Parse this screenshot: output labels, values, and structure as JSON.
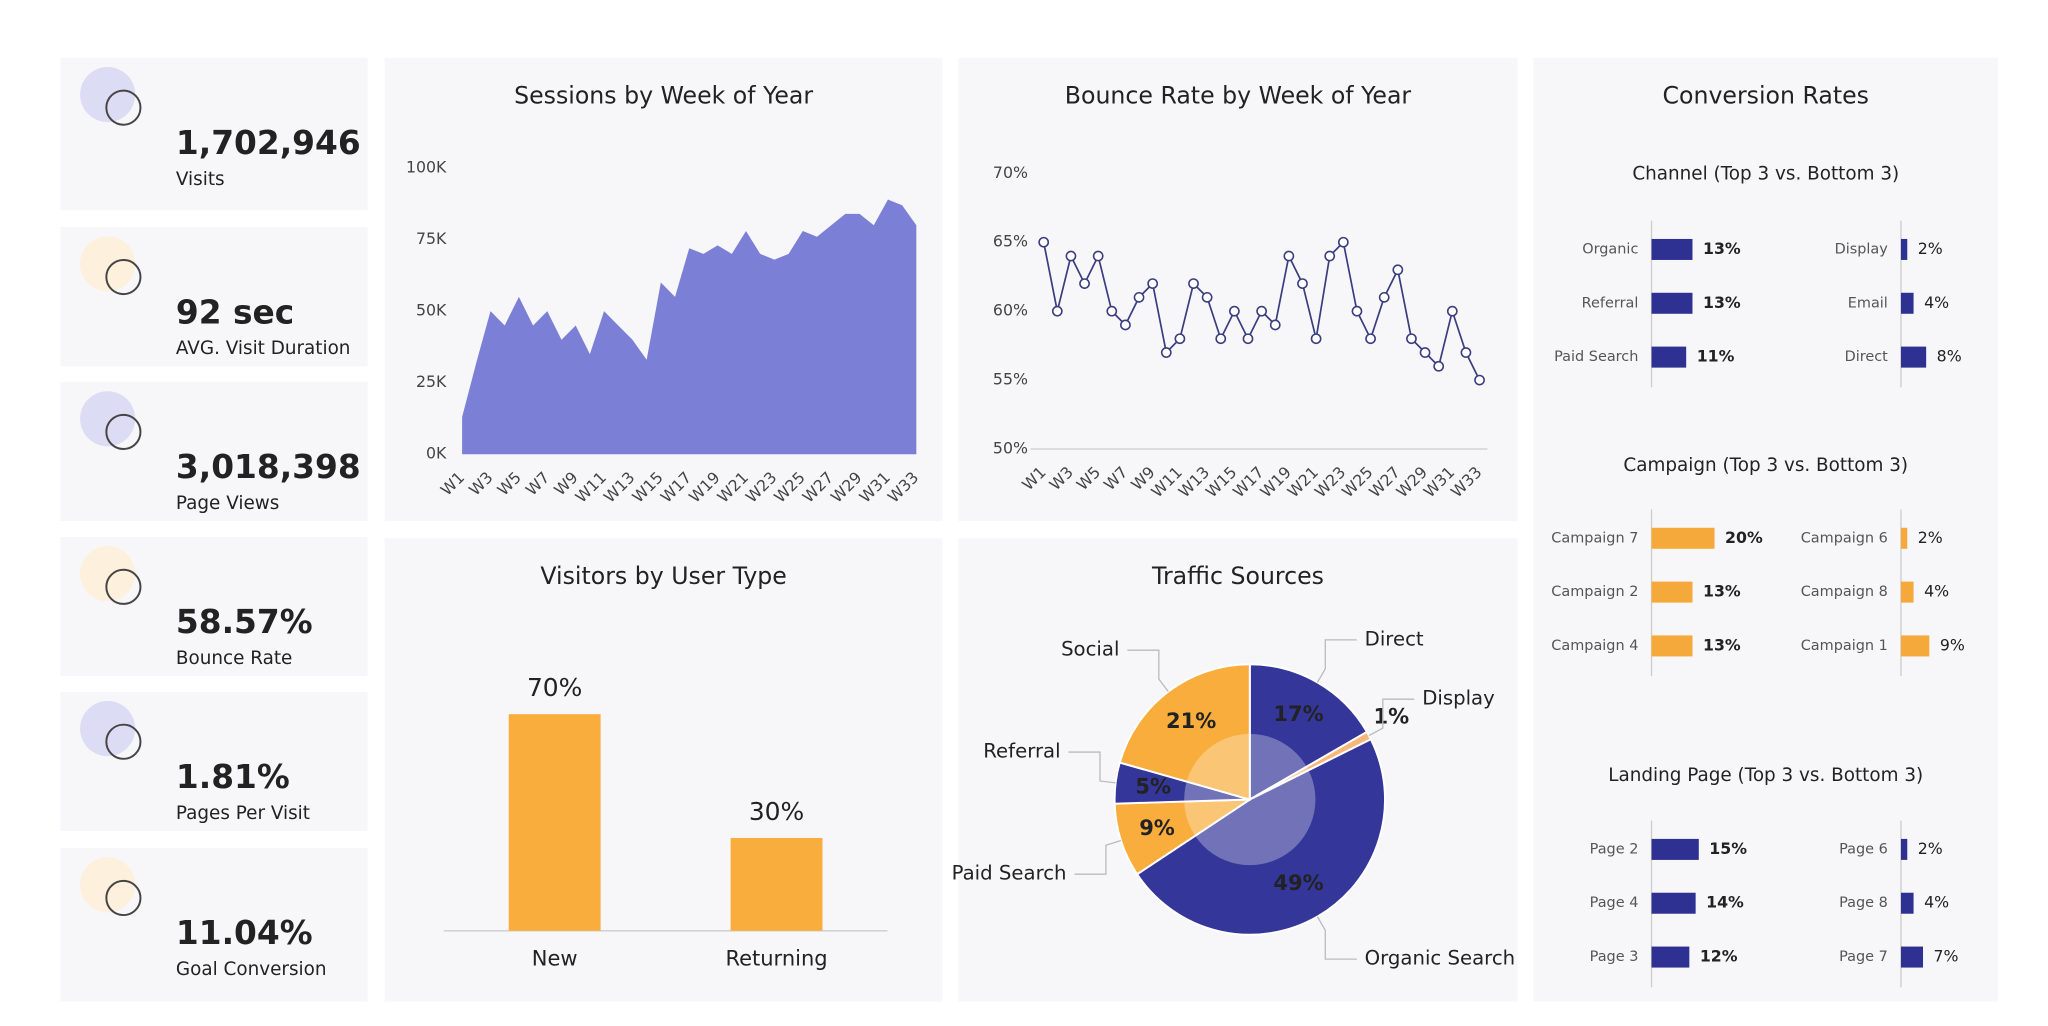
{
  "kpis": [
    {
      "value": "1,702,946",
      "label": "Visits",
      "color": "#2d2f7f"
    },
    {
      "value": "92 sec",
      "label": "AVG.  Visit Duration",
      "color": "#f5a93a"
    },
    {
      "value": "3,018,398",
      "label": "Page Views",
      "color": "#2d2f7f"
    },
    {
      "value": "58.57%",
      "label": "Bounce Rate",
      "color": "#f5a93a"
    },
    {
      "value": "1.81%",
      "label": "Pages Per Visit",
      "color": "#2d2f7f"
    },
    {
      "value": "11.04%",
      "label": "Goal Conversion",
      "color": "#f5a93a"
    }
  ],
  "chart_data": [
    {
      "type": "area",
      "title": "Sessions  by Week of Year",
      "color": "#7b80d6",
      "categories": [
        "W1",
        null,
        "W3",
        null,
        "W5",
        null,
        "W7",
        null,
        "W9",
        null,
        "W11",
        null,
        "W13",
        null,
        "W15",
        null,
        "W17",
        null,
        "W19",
        null,
        "W21",
        null,
        "W23",
        null,
        "W25",
        null,
        "W27",
        null,
        "W29",
        null,
        "W31",
        null,
        "W33"
      ],
      "values": [
        13000,
        32000,
        50000,
        45000,
        55000,
        45000,
        50000,
        40000,
        45000,
        35000,
        50000,
        45000,
        40000,
        33000,
        60000,
        55000,
        72000,
        70000,
        73000,
        70000,
        78000,
        70000,
        68000,
        70000,
        78000,
        76000,
        80000,
        84000,
        84000,
        80000,
        89000,
        87000,
        80000
      ],
      "ylim": [
        0,
        100000
      ],
      "yticks": [
        {
          "value": 0,
          "label": "0K"
        },
        {
          "value": 25000,
          "label": "25K"
        },
        {
          "value": 50000,
          "label": "50K"
        },
        {
          "value": 75000,
          "label": "75K"
        },
        {
          "value": 100000,
          "label": "100K"
        }
      ]
    },
    {
      "type": "line",
      "title": "Bounce Rate by Week of Year",
      "color": "#3a3d7e",
      "categories": [
        "W1",
        null,
        "W3",
        null,
        "W5",
        null,
        "W7",
        null,
        "W9",
        null,
        "W11",
        null,
        "W13",
        null,
        "W15",
        null,
        "W17",
        null,
        "W19",
        null,
        "W21",
        null,
        "W23",
        null,
        "W25",
        null,
        "W27",
        null,
        "W29",
        null,
        "W31",
        null,
        "W33"
      ],
      "values": [
        65,
        60,
        64,
        62,
        64,
        60,
        59,
        61,
        62,
        57,
        58,
        62,
        61,
        58,
        60,
        58,
        60,
        59,
        64,
        62,
        58,
        64,
        65,
        60,
        58,
        61,
        63,
        58,
        57,
        56,
        60,
        57,
        55
      ],
      "ylim": [
        50,
        70
      ],
      "yticks": [
        {
          "value": 50,
          "label": "50%"
        },
        {
          "value": 55,
          "label": "55%"
        },
        {
          "value": 60,
          "label": "60%"
        },
        {
          "value": 65,
          "label": "65%"
        },
        {
          "value": 70,
          "label": "70%"
        }
      ]
    },
    {
      "type": "bar",
      "title": "Visitors by User Type",
      "color": "#f9ad3c",
      "categories": [
        "New",
        "Returning"
      ],
      "values": [
        70,
        30
      ],
      "value_labels": [
        "70%",
        "30%"
      ]
    },
    {
      "type": "pie",
      "title": "Traffic Sources",
      "categories": [
        "Direct",
        "Display",
        "Organic Search",
        "Paid Search",
        "Referral",
        "Social"
      ],
      "values": [
        17,
        1,
        49,
        9,
        5,
        21
      ],
      "value_labels": [
        "17%",
        "1%",
        "49%",
        "9%",
        "5%",
        "21%"
      ],
      "colors": [
        "#34369a",
        "#f7b77a",
        "#34369a",
        "#f9ad3c",
        "#34369a",
        "#f9ad3c"
      ]
    },
    {
      "type": "hbar",
      "title": "Conversion Rates",
      "panels": [
        {
          "subtitle": "Channel (Top 3 vs. Bottom 3)",
          "color": "#2e3192",
          "categories": [
            "Organic",
            "Referral",
            "Paid Search",
            "Display",
            "Email",
            "Direct"
          ],
          "values": [
            13,
            13,
            11,
            2,
            4,
            8
          ],
          "value_labels": [
            "13%",
            "13%",
            "11%",
            "2%",
            "4%",
            "8%"
          ]
        },
        {
          "subtitle": "Campaign (Top 3 vs. Bottom 3)",
          "color": "#f5a93a",
          "categories": [
            "Campaign 7",
            "Campaign 2",
            "Campaign 4",
            "Campaign 6",
            "Campaign 8",
            "Campaign 1"
          ],
          "values": [
            20,
            13,
            13,
            2,
            4,
            9
          ],
          "value_labels": [
            "20%",
            "13%",
            "13%",
            "2%",
            "4%",
            "9%"
          ]
        },
        {
          "subtitle": "Landing Page (Top 3 vs. Bottom 3)",
          "color": "#2e3192",
          "categories": [
            "Page 2",
            "Page 4",
            "Page 3",
            "Page 6",
            "Page 8",
            "Page 7"
          ],
          "values": [
            15,
            14,
            12,
            2,
            4,
            7
          ],
          "value_labels": [
            "15%",
            "14%",
            "12%",
            "2%",
            "4%",
            "7%"
          ]
        }
      ]
    }
  ]
}
